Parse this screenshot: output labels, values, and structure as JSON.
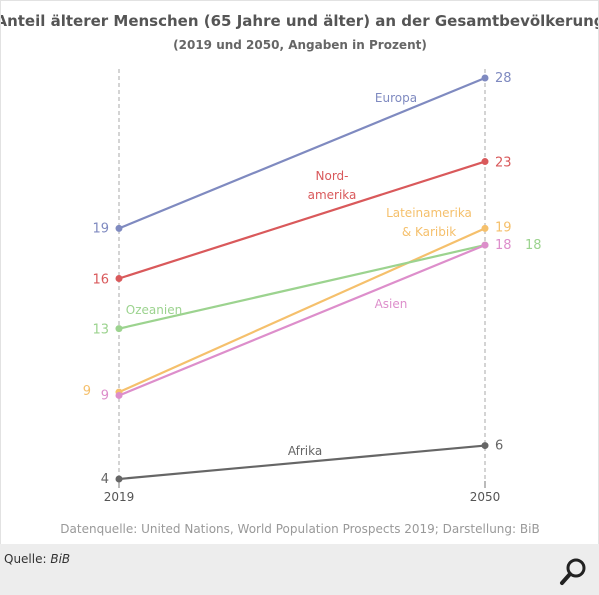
{
  "footer": {
    "source_prefix": "Quelle:",
    "source_name": "BiB",
    "zoom_icon": "magnifier-icon"
  },
  "chart_data": {
    "type": "line",
    "title": "Anteil älterer Menschen (65 Jahre und älter) an der Gesamtbevölkerung",
    "subtitle": "(2019 und 2050, Angaben in Prozent)",
    "x": [
      "2019",
      "2050"
    ],
    "ylim": [
      4,
      28
    ],
    "grid": false,
    "legend": "inline",
    "series": [
      {
        "name": "Europa",
        "values": [
          19,
          28
        ],
        "color": "#7f8ac0",
        "labels": [
          "19",
          "28"
        ]
      },
      {
        "name": "Nord-amerika",
        "values": [
          16,
          23
        ],
        "color": "#d9595b",
        "labels": [
          "16",
          "23"
        ]
      },
      {
        "name": "Lateinamerika & Karibik",
        "values": [
          9.2,
          19
        ],
        "color": "#f5c06c",
        "labels": [
          "9",
          "19"
        ]
      },
      {
        "name": "Ozeanien",
        "values": [
          13,
          18
        ],
        "color": "#9cd38f",
        "labels": [
          "13",
          "18"
        ]
      },
      {
        "name": "Asien",
        "values": [
          9,
          18
        ],
        "color": "#dd8ecb",
        "labels": [
          "9",
          "18"
        ]
      },
      {
        "name": "Afrika",
        "values": [
          4,
          6
        ],
        "color": "#666666",
        "labels": [
          "4",
          "6"
        ]
      }
    ],
    "source_note": "Datenquelle: United Nations, World Population Prospects 2019; Darstellung: BiB"
  }
}
